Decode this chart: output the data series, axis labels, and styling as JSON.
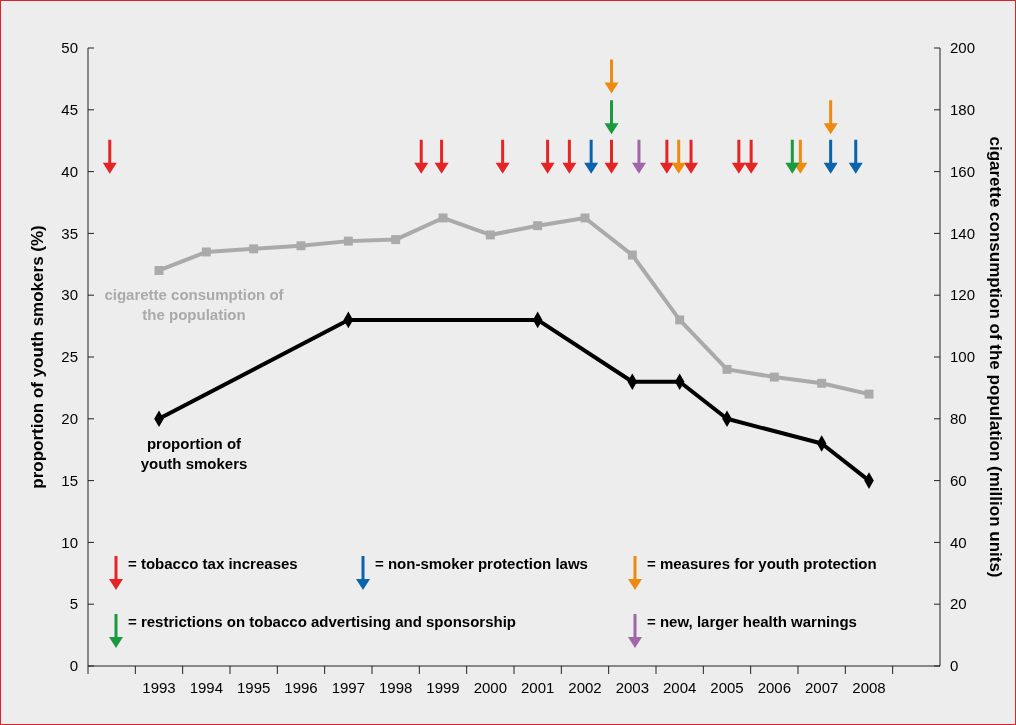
{
  "chart_data": {
    "type": "line",
    "xlim": [
      1991.5,
      2009.5
    ],
    "xticks": [
      1993,
      1994,
      1995,
      1996,
      1997,
      1998,
      1999,
      2000,
      2001,
      2002,
      2003,
      2004,
      2005,
      2006,
      2007,
      2008
    ],
    "ylim": [
      0,
      50
    ],
    "yticks": [
      0,
      5,
      10,
      15,
      20,
      25,
      30,
      35,
      40,
      45,
      50
    ],
    "y2lim": [
      0,
      200
    ],
    "y2ticks": [
      0,
      20,
      40,
      60,
      80,
      100,
      120,
      140,
      160,
      180,
      200
    ],
    "ylabel": "proportion of youth smokers (%)",
    "y2label": "cigarette consumption of the population (million units)",
    "grid": false,
    "legend": "bottom",
    "line_style": "solid",
    "series": [
      {
        "name": "cigarette consumption of the population",
        "color": "#aaaaaa",
        "axis": "y2",
        "marker": "square",
        "x": [
          1993,
          1994,
          1995,
          1996,
          1997,
          1998,
          1999,
          2000,
          2001,
          2002,
          2003,
          2004,
          2005,
          2006,
          2007,
          2008
        ],
        "values": [
          128,
          134,
          135,
          136,
          137.5,
          138,
          145,
          139.5,
          142.5,
          145,
          133,
          112,
          96,
          93.5,
          91.5,
          88
        ]
      },
      {
        "name": "proportion of youth smokers",
        "color": "#000000",
        "marker": "diamond",
        "x": [
          1993,
          1997,
          2001,
          2003,
          2004,
          2005,
          2007,
          2008
        ],
        "values": [
          20,
          28,
          28,
          23,
          23,
          20,
          18,
          15
        ]
      },
      {
        "name": "= tobacco tax increases",
        "type": "scatter",
        "marker": "triangle",
        "color": "#e32526",
        "x": [
          1991.96,
          1998.54,
          1998.97,
          2000.26,
          2001.21,
          2001.67,
          2002.56,
          2003.73,
          2004.24,
          2005.25,
          2005.51
        ],
        "values": [
          41.2,
          41.2,
          41.2,
          41.2,
          41.2,
          41.2,
          41.2,
          41.2,
          41.2,
          41.2,
          41.2
        ]
      },
      {
        "name": "= non-smoker protection laws",
        "type": "scatter",
        "marker": "triangle",
        "color": "#0a64ad",
        "x": [
          2002.13,
          2007.19,
          2007.72
        ],
        "values": [
          41.2,
          41.2,
          41.2
        ]
      },
      {
        "name": "= measures for youth protection",
        "type": "scatter",
        "marker": "triangle",
        "color": "#ef8a11",
        "x": [
          2002.56,
          2003.98,
          2006.55,
          2007.19
        ],
        "values": [
          47.7,
          41.2,
          41.2,
          44.4
        ]
      },
      {
        "name": "= restrictions on tobacco advertising and sponsorship",
        "type": "scatter",
        "marker": "triangle",
        "color": "#1a9a3e",
        "x": [
          2002.56,
          2006.38
        ],
        "values": [
          44.4,
          41.2
        ]
      },
      {
        "name": "= new, larger health warnings",
        "type": "scatter",
        "marker": "triangle",
        "color": "#a066a8",
        "x": [
          2003.14
        ],
        "values": [
          41.2
        ]
      }
    ]
  }
}
